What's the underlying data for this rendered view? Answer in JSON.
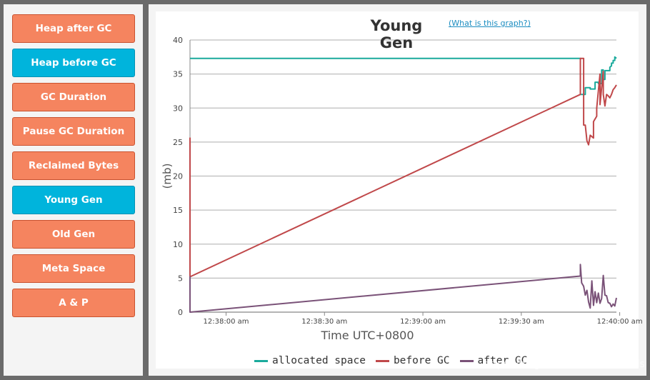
{
  "sidebar": {
    "buttons": [
      {
        "label": "Heap after GC",
        "active": false
      },
      {
        "label": "Heap before GC",
        "active": true
      },
      {
        "label": "GC Duration",
        "active": false
      },
      {
        "label": "Pause GC Duration",
        "active": false
      },
      {
        "label": "Reclaimed Bytes",
        "active": false
      },
      {
        "label": "Young Gen",
        "active": true
      },
      {
        "label": "Old Gen",
        "active": false
      },
      {
        "label": "Meta Space",
        "active": false
      },
      {
        "label": "A & P",
        "active": false
      }
    ]
  },
  "header": {
    "help_link": "(What is this graph?)"
  },
  "watermark": "https://blog.csdn.net/CoderBruis",
  "colors": {
    "accent_active": "#00b4dc",
    "button": "#f5845f"
  },
  "chart_data": {
    "type": "line",
    "title": "Young Gen",
    "xlabel": "Time UTC+0800",
    "ylabel": "(mb)",
    "ylim": [
      0,
      40
    ],
    "yticks": [
      0,
      5,
      10,
      15,
      20,
      25,
      30,
      35,
      40
    ],
    "x_unit": "seconds after 12:38:00 am",
    "xlim": [
      -11,
      119
    ],
    "xticks": [
      {
        "value": 0,
        "label": "12:38:00 am"
      },
      {
        "value": 30,
        "label": "12:38:30 am"
      },
      {
        "value": 60,
        "label": "12:39:00 am"
      },
      {
        "value": 90,
        "label": "12:39:30 am"
      },
      {
        "value": 120,
        "label": "12:40:00 am"
      }
    ],
    "grid": true,
    "legend": "bottom",
    "series": [
      {
        "name": "allocated space",
        "color": "#1aaa9c",
        "points": [
          [
            -11,
            37.3
          ],
          [
            108,
            37.3
          ],
          [
            108,
            32
          ],
          [
            109.5,
            32
          ],
          [
            109.5,
            33
          ],
          [
            111,
            33
          ],
          [
            111,
            32.8
          ],
          [
            112.5,
            32.8
          ],
          [
            112.5,
            33.8
          ],
          [
            113.5,
            33.8
          ],
          [
            113.5,
            33.6
          ],
          [
            114.5,
            33.6
          ],
          [
            114.5,
            35.6
          ],
          [
            115,
            35.6
          ],
          [
            115,
            34.2
          ],
          [
            115.5,
            34.2
          ],
          [
            115.5,
            35.5
          ],
          [
            116,
            35.5
          ],
          [
            116,
            35.5
          ],
          [
            117,
            35.5
          ],
          [
            117,
            36
          ],
          [
            117.5,
            36.2
          ],
          [
            117.5,
            36.6
          ],
          [
            118,
            36.6
          ],
          [
            118,
            37
          ],
          [
            118.5,
            37
          ],
          [
            118.5,
            37.5
          ],
          [
            119,
            37.3
          ]
        ]
      },
      {
        "name": "before GC",
        "color": "#c0484a",
        "points": [
          [
            -11,
            0.3
          ],
          [
            -11,
            25.6
          ],
          [
            -11,
            5.2
          ],
          [
            108,
            32
          ],
          [
            108,
            37.3
          ],
          [
            109,
            37.3
          ],
          [
            109,
            27.5
          ],
          [
            109.5,
            27.5
          ],
          [
            110,
            25.2
          ],
          [
            110.5,
            24.6
          ],
          [
            111,
            26
          ],
          [
            112,
            25.6
          ],
          [
            112,
            28
          ],
          [
            113,
            28.8
          ],
          [
            113,
            30
          ],
          [
            114,
            35
          ],
          [
            114,
            30.5
          ],
          [
            114.5,
            33
          ],
          [
            115,
            35.4
          ],
          [
            115,
            32
          ],
          [
            115.5,
            30.3
          ],
          [
            116,
            32
          ],
          [
            116.5,
            31.8
          ],
          [
            117,
            31.5
          ],
          [
            117.5,
            32
          ],
          [
            118,
            32.7
          ],
          [
            118.5,
            33
          ],
          [
            119,
            33.4
          ]
        ]
      },
      {
        "name": "after GC",
        "color": "#7a5278",
        "points": [
          [
            -11,
            0
          ],
          [
            -11,
            5.2
          ],
          [
            -11,
            0
          ],
          [
            108,
            5.3
          ],
          [
            108,
            7
          ],
          [
            108.4,
            4.3
          ],
          [
            109,
            3.8
          ],
          [
            109.5,
            2.5
          ],
          [
            110,
            3.2
          ],
          [
            110.5,
            1.5
          ],
          [
            111,
            0.6
          ],
          [
            111.5,
            4.6
          ],
          [
            112,
            1
          ],
          [
            112.5,
            3
          ],
          [
            113,
            1.4
          ],
          [
            113.5,
            2.8
          ],
          [
            114,
            1.3
          ],
          [
            114.5,
            2
          ],
          [
            115,
            5.4
          ],
          [
            115.5,
            2.5
          ],
          [
            116,
            2.4
          ],
          [
            116.5,
            1.4
          ],
          [
            117,
            1.3
          ],
          [
            117.5,
            0.8
          ],
          [
            118,
            1.2
          ],
          [
            118.5,
            0.9
          ],
          [
            119,
            2.1
          ]
        ]
      }
    ]
  }
}
